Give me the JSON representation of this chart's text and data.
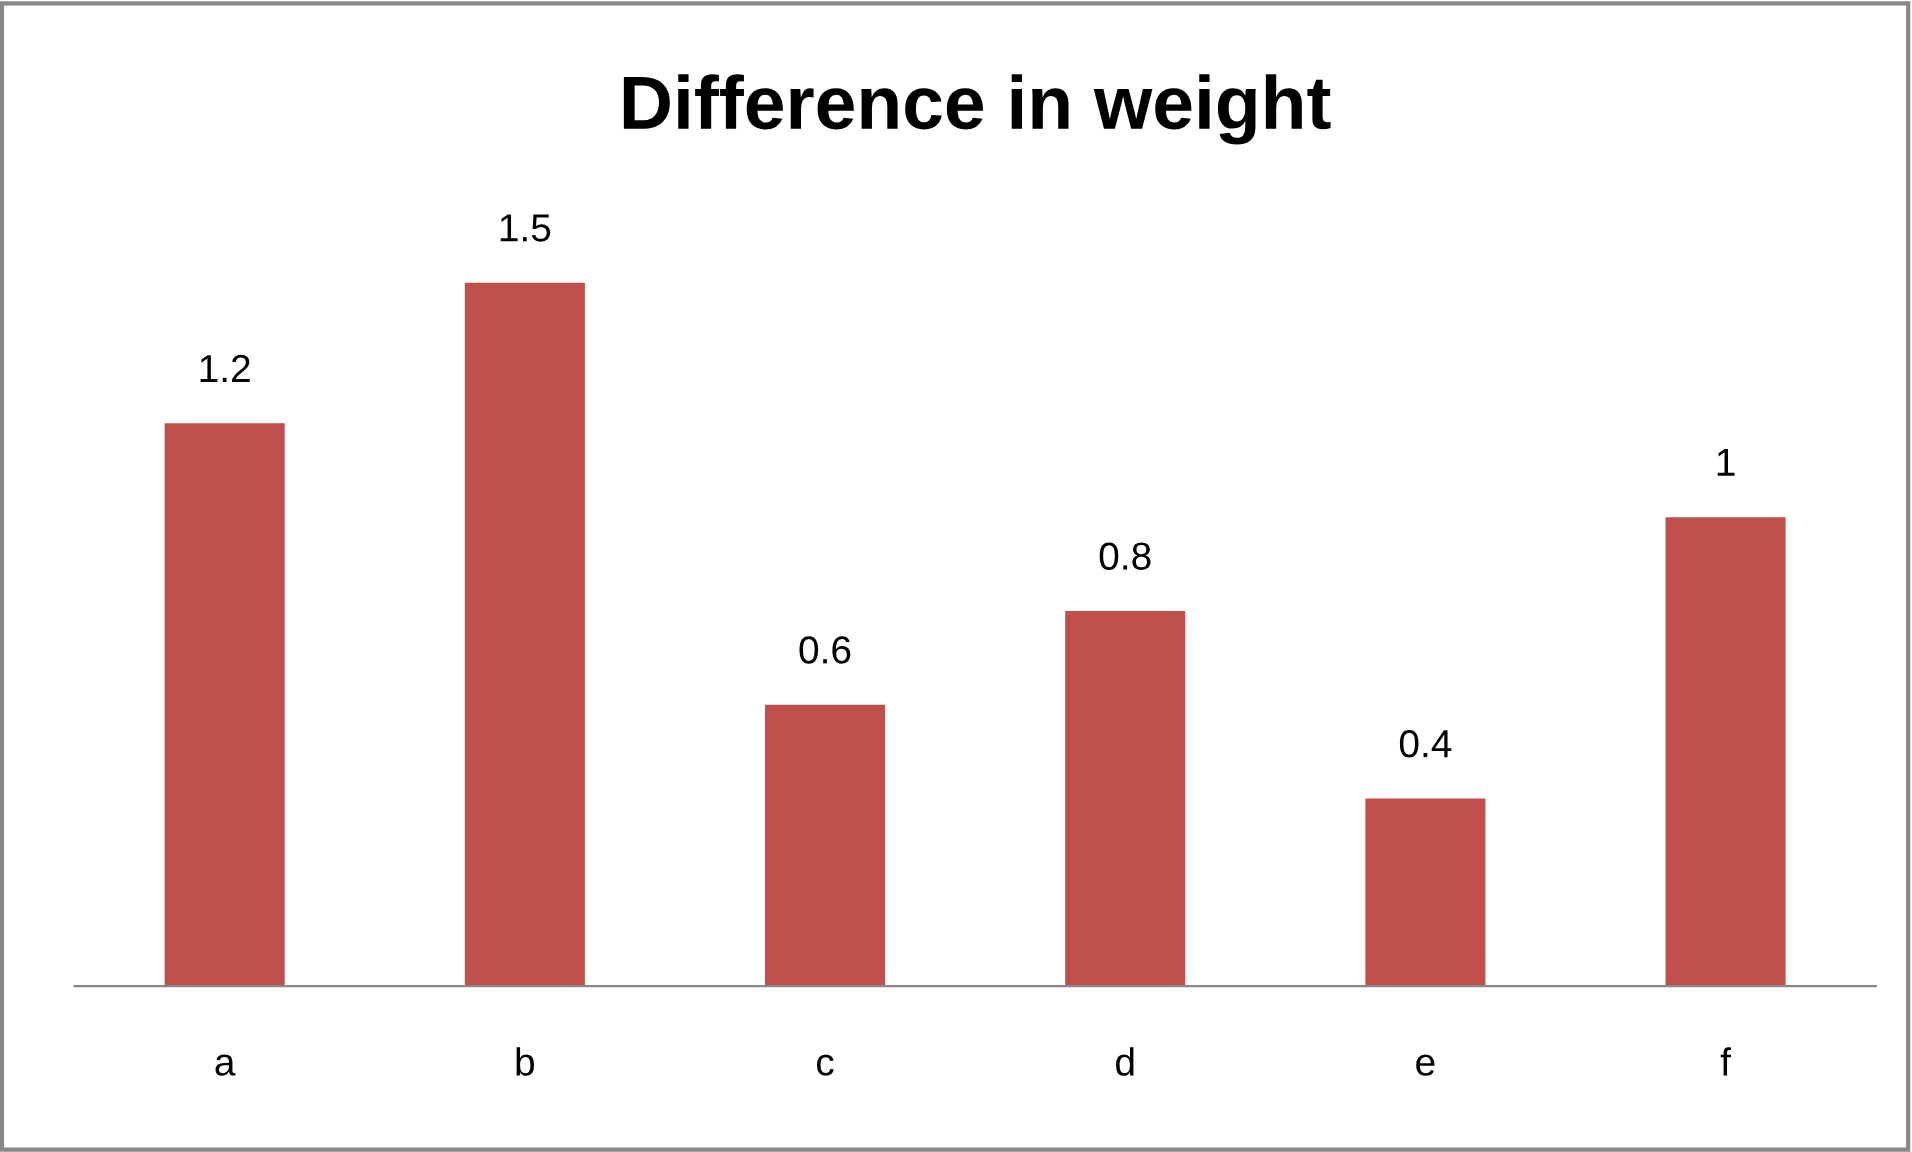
{
  "chart_data": {
    "type": "bar",
    "title": "Difference in weight",
    "categories": [
      "a",
      "b",
      "c",
      "d",
      "e",
      "f"
    ],
    "values": [
      1.2,
      1.5,
      0.6,
      0.8,
      0.4,
      1
    ],
    "color": "#c0504d",
    "data_labels": true,
    "tick_labels": "x",
    "grid": false,
    "legend": false
  }
}
